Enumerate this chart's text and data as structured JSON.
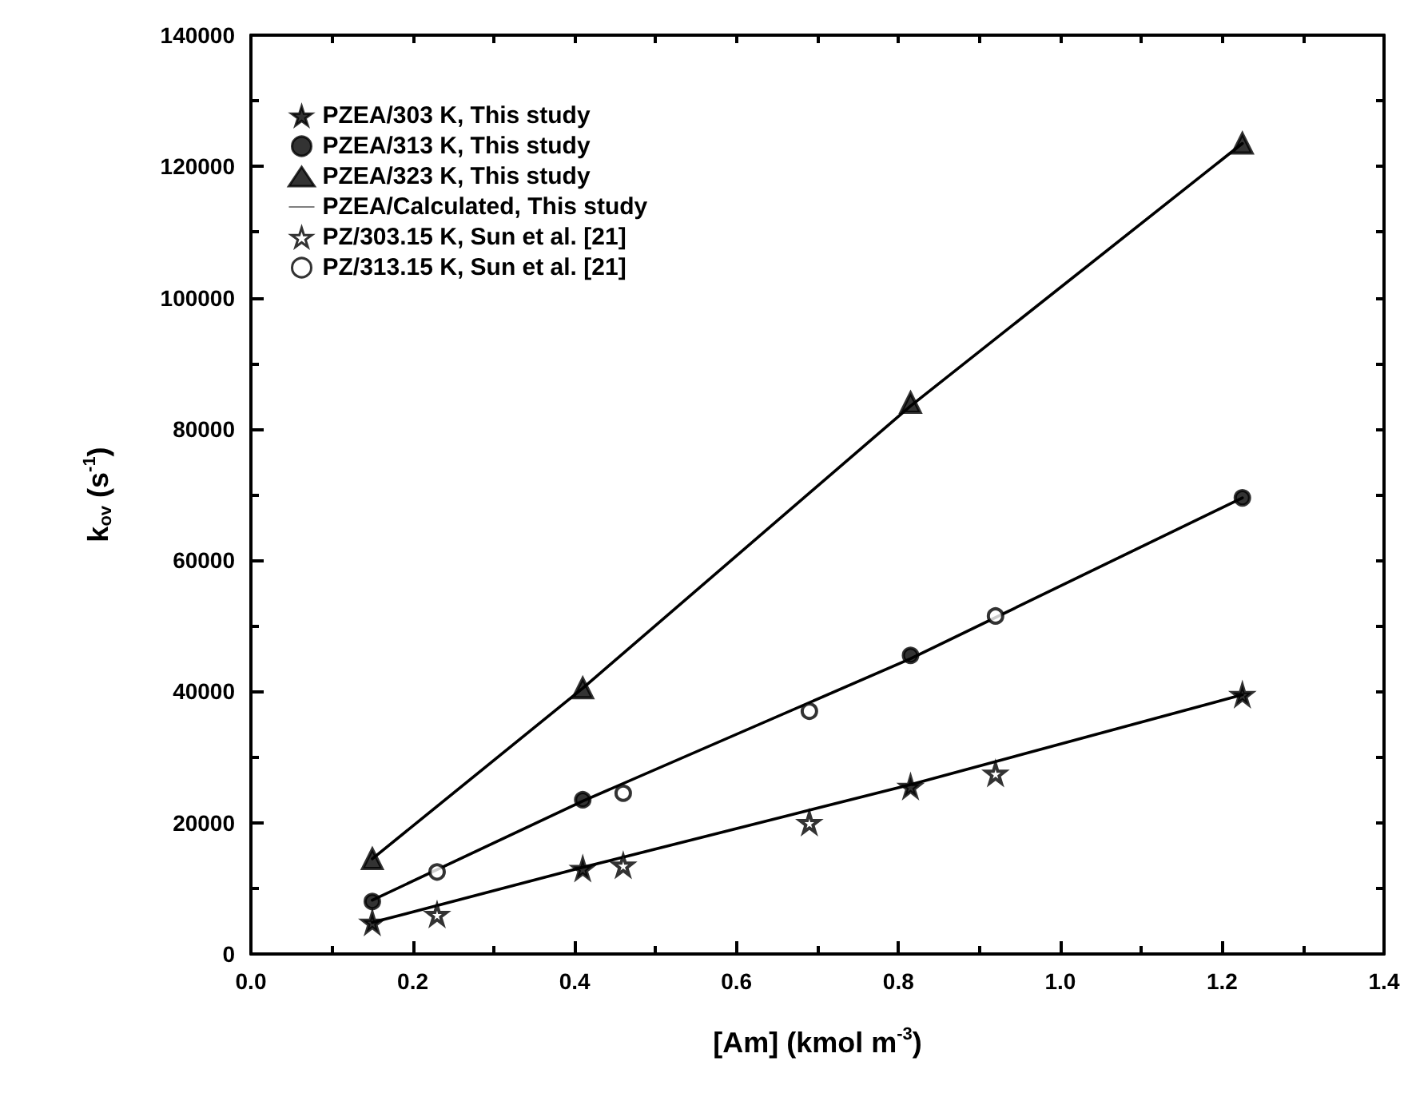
{
  "chart_data": {
    "type": "scatter",
    "xlabel": "[Am] (kmol m$^{-3}$)",
    "ylabel": "k$_{ov}$ (s$^{-1}$)",
    "xlim": [
      0,
      1.4
    ],
    "xticks": [
      {
        "value": 0,
        "label": "0.0"
      },
      0.2,
      0.4,
      0.6,
      0.8,
      {
        "value": 1,
        "label": "1.0"
      },
      1.2,
      1.4
    ],
    "ylim": [
      0,
      140000
    ],
    "yticks": [
      0,
      20000,
      40000,
      60000,
      80000,
      100000,
      120000,
      140000
    ],
    "grid": false,
    "legend": "top left",
    "series": [
      {
        "name": "PZEA/303 K, This study",
        "marker": "star",
        "color": "#000000",
        "x": [
          0.15,
          0.41,
          0.815,
          1.225
        ],
        "values": [
          4800,
          13000,
          25500,
          39500
        ]
      },
      {
        "name": "PZEA/313 K, This study",
        "marker": "circle",
        "color": "#000000",
        "x": [
          0.15,
          0.41,
          0.815,
          1.225
        ],
        "values": [
          8000,
          23500,
          45500,
          69500
        ]
      },
      {
        "name": "PZEA/323 K, This study",
        "marker": "triangle",
        "color": "#000000",
        "x": [
          0.15,
          0.41,
          0.815,
          1.225
        ],
        "values": [
          14500,
          40500,
          84000,
          123500
        ]
      },
      {
        "name": "PZEA/Calculated, This study",
        "type": "line",
        "marker": "none",
        "color": "#000000",
        "x": [
          0.15,
          0.41,
          0.815,
          1.225
        ],
        "values": [
          4800,
          13200,
          25800,
          39500
        ]
      },
      {
        "type": "line",
        "marker": "none",
        "color": "#000000",
        "x": [
          0.15,
          0.41,
          0.815,
          1.225
        ],
        "values": [
          8200,
          23300,
          45000,
          69500
        ]
      },
      {
        "type": "line",
        "marker": "none",
        "color": "#000000",
        "x": [
          0.15,
          0.41,
          0.815,
          1.225
        ],
        "values": [
          14500,
          40500,
          83500,
          123500
        ]
      },
      {
        "name": "PZ/303.15 K, Sun et al. [21]",
        "marker": "star",
        "color": "#ffffff",
        "x": [
          0.23,
          0.46,
          0.69,
          0.92
        ],
        "values": [
          6000,
          13500,
          20000,
          27500
        ]
      },
      {
        "name": "PZ/313.15 K, Sun et al. [21]",
        "marker": "circle",
        "color": "#ffffff",
        "x": [
          0.23,
          0.46,
          0.69,
          0.92
        ],
        "values": [
          12500,
          24500,
          37000,
          51500
        ]
      }
    ]
  }
}
